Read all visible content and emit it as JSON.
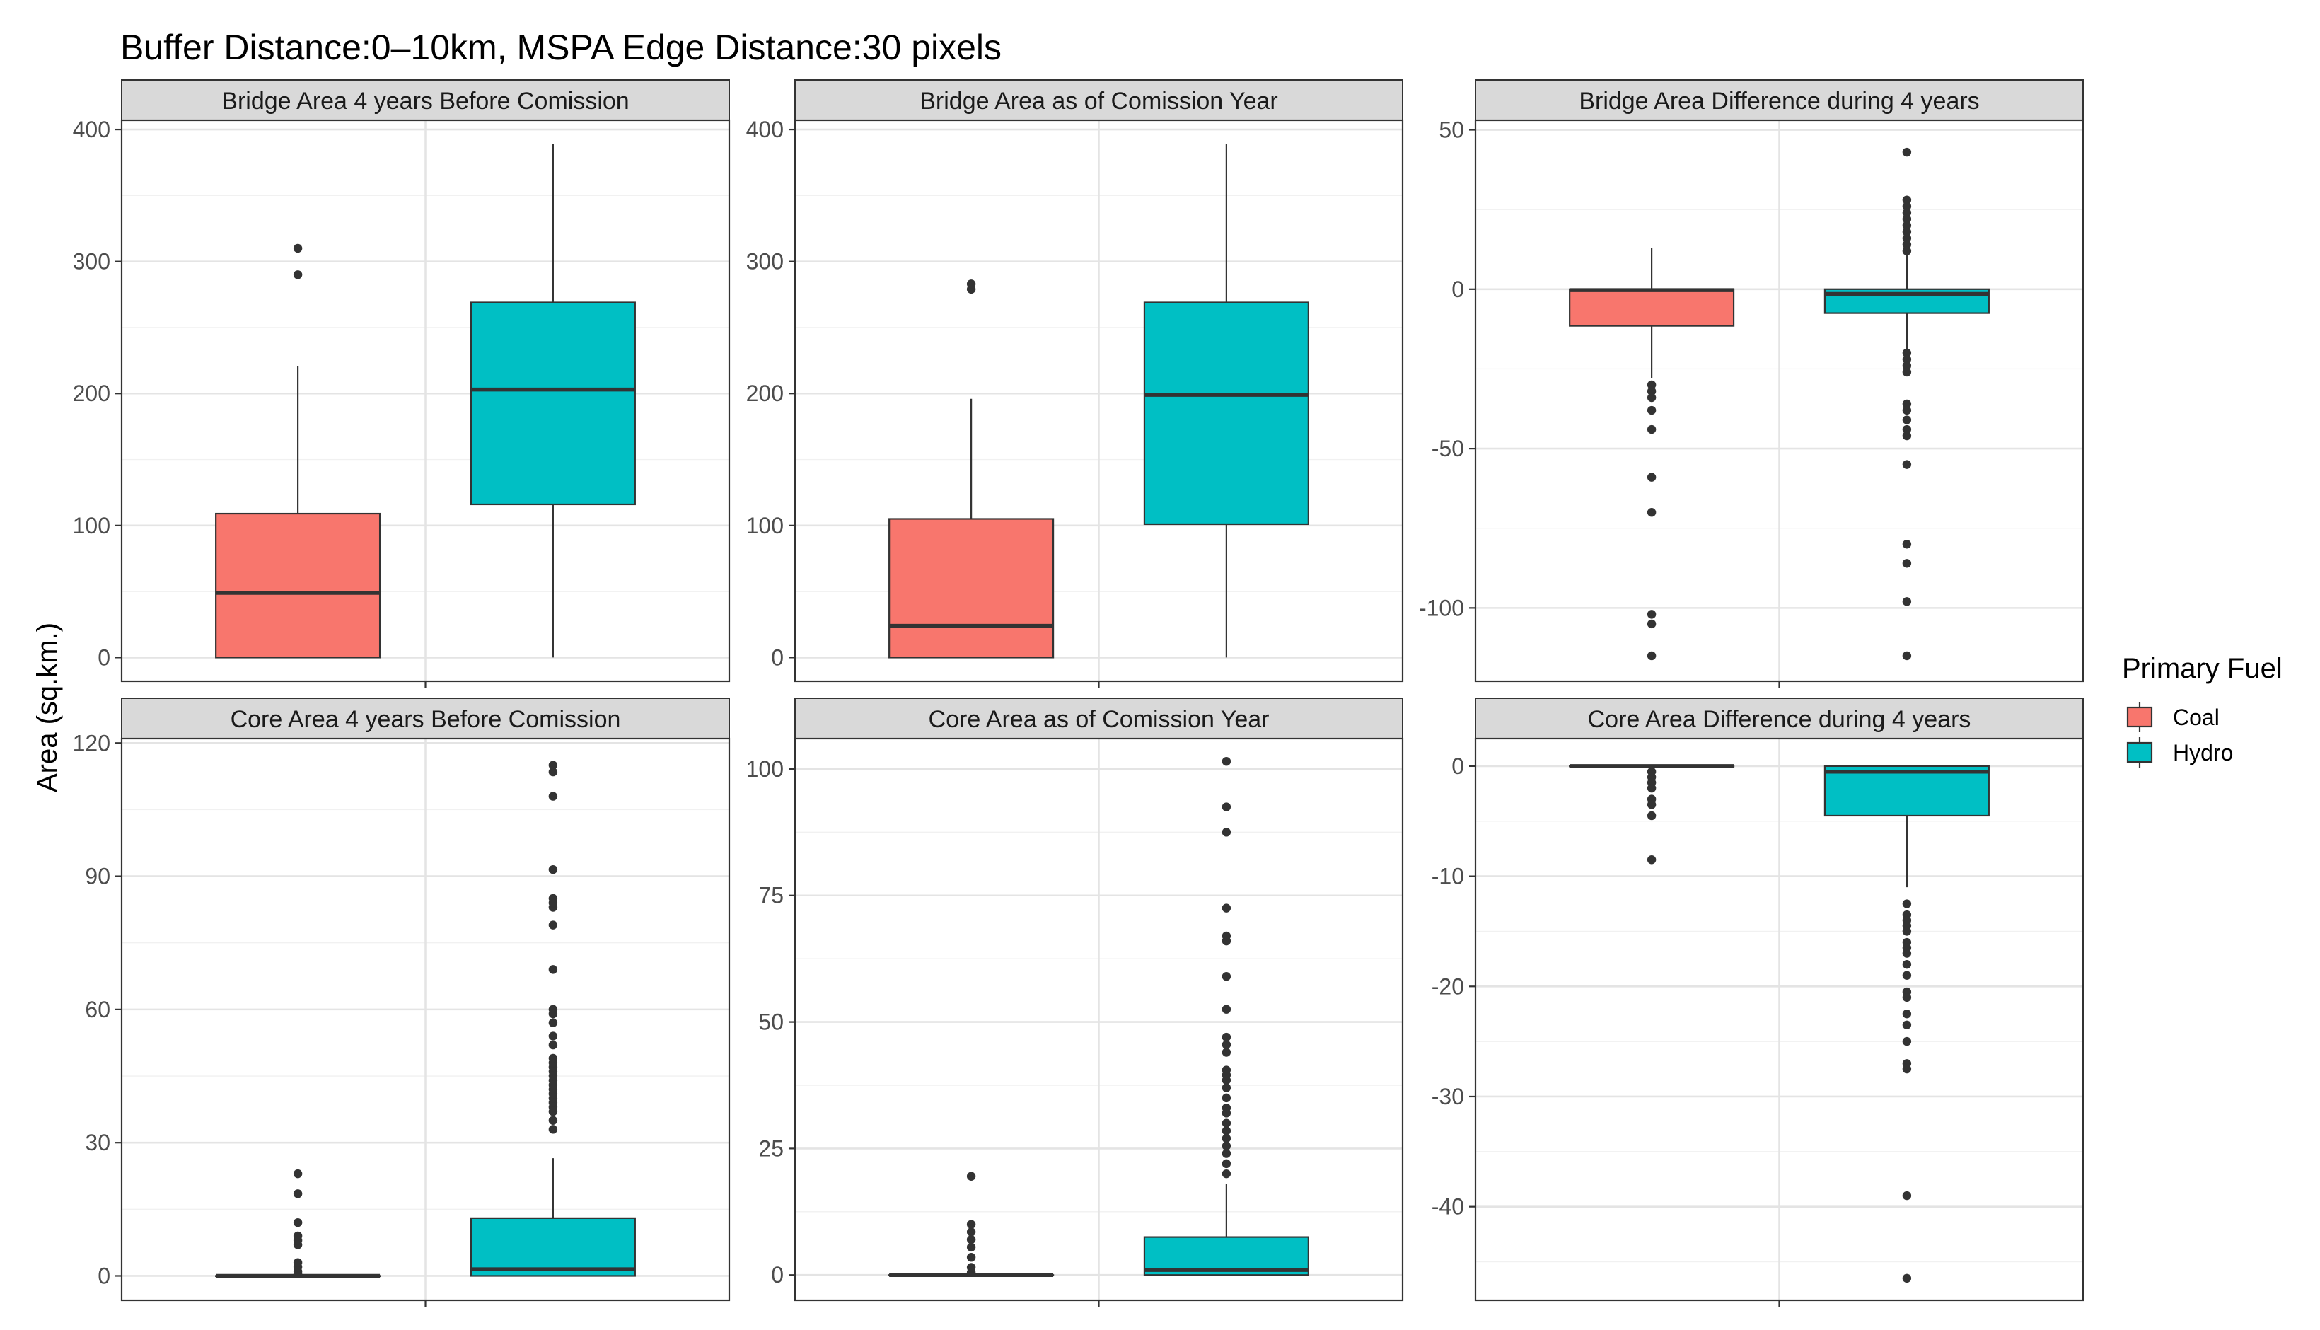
{
  "title": "Buffer Distance:0–10km, MSPA Edge Distance:30 pixels",
  "ylabel": "Area (sq.km.)",
  "legend": {
    "title": "Primary Fuel",
    "items": [
      {
        "label": "Coal",
        "color": "#F8766D"
      },
      {
        "label": "Hydro",
        "color": "#00BFC4"
      }
    ]
  },
  "chart_data": [
    {
      "type": "box",
      "title": "Bridge Area  4 years Before Comission",
      "ylim": [
        -18,
        407
      ],
      "yticks": [
        0,
        100,
        200,
        300,
        400
      ],
      "minor_ticks": [
        50,
        150,
        250,
        350
      ],
      "series": [
        {
          "name": "Coal",
          "min": 0,
          "q1": 0,
          "median": 49,
          "q3": 109,
          "max": 221,
          "outliers": [
            290,
            310
          ]
        },
        {
          "name": "Hydro",
          "min": 0,
          "q1": 116,
          "median": 203,
          "q3": 269,
          "max": 389,
          "outliers": []
        }
      ]
    },
    {
      "type": "box",
      "title": "Bridge Area as of Comission Year",
      "ylim": [
        -18,
        407
      ],
      "yticks": [
        0,
        100,
        200,
        300,
        400
      ],
      "minor_ticks": [
        50,
        150,
        250,
        350
      ],
      "series": [
        {
          "name": "Coal",
          "min": 0,
          "q1": 0,
          "median": 24,
          "q3": 105,
          "max": 196,
          "outliers": [
            279,
            283
          ]
        },
        {
          "name": "Hydro",
          "min": 0,
          "q1": 101,
          "median": 199,
          "q3": 269,
          "max": 389,
          "outliers": []
        }
      ]
    },
    {
      "type": "box",
      "title": "Bridge Area Difference during 4 years",
      "ylim": [
        -123,
        53
      ],
      "yticks": [
        -100,
        -50,
        0,
        50
      ],
      "minor_ticks": [
        -75,
        -25,
        25
      ],
      "series": [
        {
          "name": "Coal",
          "min": -28,
          "q1": -11.5,
          "median": -0.3,
          "q3": 0,
          "max": 13,
          "outliers": [
            -30,
            -32,
            -34,
            -38,
            -44,
            -59,
            -70,
            -102,
            -105,
            -115
          ]
        },
        {
          "name": "Hydro",
          "min": -19,
          "q1": -7.5,
          "median": -1.5,
          "q3": 0,
          "max": 11,
          "outliers": [
            43,
            28,
            26,
            24,
            22,
            20,
            18,
            16,
            14,
            12,
            -20,
            -22,
            -24,
            -26,
            -36,
            -38,
            -41,
            -44,
            -46,
            -55,
            -80,
            -86,
            -98,
            -115
          ]
        }
      ]
    },
    {
      "type": "box",
      "title": "Core Area 4 years Before Comission",
      "ylim": [
        -5.5,
        121
      ],
      "yticks": [
        0,
        30,
        60,
        90,
        120
      ],
      "minor_ticks": [
        15,
        45,
        75,
        105
      ],
      "series": [
        {
          "name": "Coal",
          "min": 0,
          "q1": 0,
          "median": 0,
          "q3": 0,
          "max": 0,
          "outliers": [
            0.5,
            1,
            2,
            3,
            7,
            8,
            9,
            12,
            18.5,
            23
          ]
        },
        {
          "name": "Hydro",
          "min": 0,
          "q1": 0,
          "median": 1.5,
          "q3": 13,
          "max": 26.5,
          "outliers": [
            33,
            35,
            37,
            38,
            39,
            40,
            41,
            42,
            43,
            44,
            45,
            46,
            47,
            48,
            49,
            52,
            54,
            57,
            59,
            60,
            69,
            79,
            83,
            84,
            85,
            91.5,
            108,
            113.5,
            115
          ]
        }
      ]
    },
    {
      "type": "box",
      "title": "Core Area as of Comission Year",
      "ylim": [
        -5,
        106
      ],
      "yticks": [
        0,
        25,
        50,
        75,
        100
      ],
      "minor_ticks": [
        12.5,
        37.5,
        62.5,
        87.5
      ],
      "series": [
        {
          "name": "Coal",
          "min": 0,
          "q1": 0,
          "median": 0,
          "q3": 0,
          "max": 0,
          "outliers": [
            0.5,
            1.5,
            3.5,
            5.5,
            7,
            8.5,
            10,
            19.5
          ]
        },
        {
          "name": "Hydro",
          "min": 0,
          "q1": 0,
          "median": 1,
          "q3": 7.5,
          "max": 18,
          "outliers": [
            20,
            22,
            24,
            25.5,
            27,
            28.5,
            30,
            32,
            33,
            35,
            37,
            38.5,
            39.5,
            40.5,
            44,
            45.5,
            47,
            52.5,
            59,
            66,
            67,
            72.5,
            87.5,
            92.5,
            101.5
          ]
        }
      ]
    },
    {
      "type": "box",
      "title": "Core Area Difference during 4 years",
      "ylim": [
        -48.5,
        2.5
      ],
      "yticks": [
        -40,
        -30,
        -20,
        -10,
        0
      ],
      "minor_ticks": [
        -45,
        -35,
        -25,
        -15,
        -5
      ],
      "series": [
        {
          "name": "Coal",
          "min": 0,
          "q1": 0,
          "median": 0,
          "q3": 0,
          "max": 0,
          "outliers": [
            -0.5,
            -1,
            -1.5,
            -2,
            -3,
            -3.5,
            -4.5,
            -8.5
          ]
        },
        {
          "name": "Hydro",
          "min": -11,
          "q1": -4.5,
          "median": -0.5,
          "q3": 0,
          "max": 0,
          "outliers": [
            -12.5,
            -13.5,
            -14,
            -14.5,
            -15,
            -16,
            -16.5,
            -17,
            -18,
            -19,
            -20.5,
            -21,
            -22.5,
            -23.5,
            -25,
            -27,
            -27.5,
            -39,
            -46.5
          ]
        }
      ]
    }
  ]
}
